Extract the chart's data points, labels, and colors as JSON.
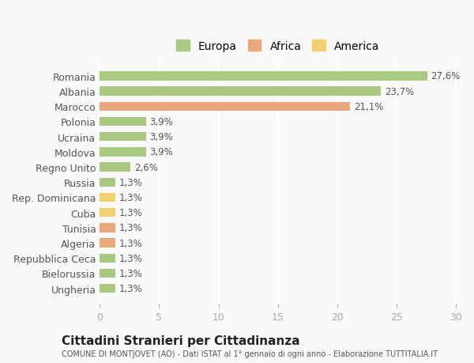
{
  "categories": [
    "Romania",
    "Albania",
    "Marocco",
    "Polonia",
    "Ucraina",
    "Moldova",
    "Regno Unito",
    "Russia",
    "Rep. Dominicana",
    "Cuba",
    "Tunisia",
    "Algeria",
    "Repubblica Ceca",
    "Bielorussia",
    "Ungheria"
  ],
  "values": [
    27.6,
    23.7,
    21.1,
    3.9,
    3.9,
    3.9,
    2.6,
    1.3,
    1.3,
    1.3,
    1.3,
    1.3,
    1.3,
    1.3,
    1.3
  ],
  "labels": [
    "27,6%",
    "23,7%",
    "21,1%",
    "3,9%",
    "3,9%",
    "3,9%",
    "2,6%",
    "1,3%",
    "1,3%",
    "1,3%",
    "1,3%",
    "1,3%",
    "1,3%",
    "1,3%",
    "1,3%"
  ],
  "colors": [
    "#a8c97f",
    "#a8c97f",
    "#e8a87c",
    "#a8c97f",
    "#a8c97f",
    "#a8c97f",
    "#a8c97f",
    "#a8c97f",
    "#f0d070",
    "#f0d070",
    "#e8a87c",
    "#e8a87c",
    "#a8c97f",
    "#a8c97f",
    "#a8c97f"
  ],
  "legend": {
    "Europa": "#a8c97f",
    "Africa": "#e8a87c",
    "America": "#f0d070"
  },
  "xlim": [
    0,
    30
  ],
  "xticks": [
    0,
    5,
    10,
    15,
    20,
    25,
    30
  ],
  "title": "Cittadini Stranieri per Cittadinanza",
  "subtitle": "COMUNE DI MONTJOVET (AO) - Dati ISTAT al 1° gennaio di ogni anno - Elaborazione TUTTITALIA.IT",
  "background_color": "#f9f9f9",
  "grid_color": "#ffffff",
  "bar_height": 0.6
}
